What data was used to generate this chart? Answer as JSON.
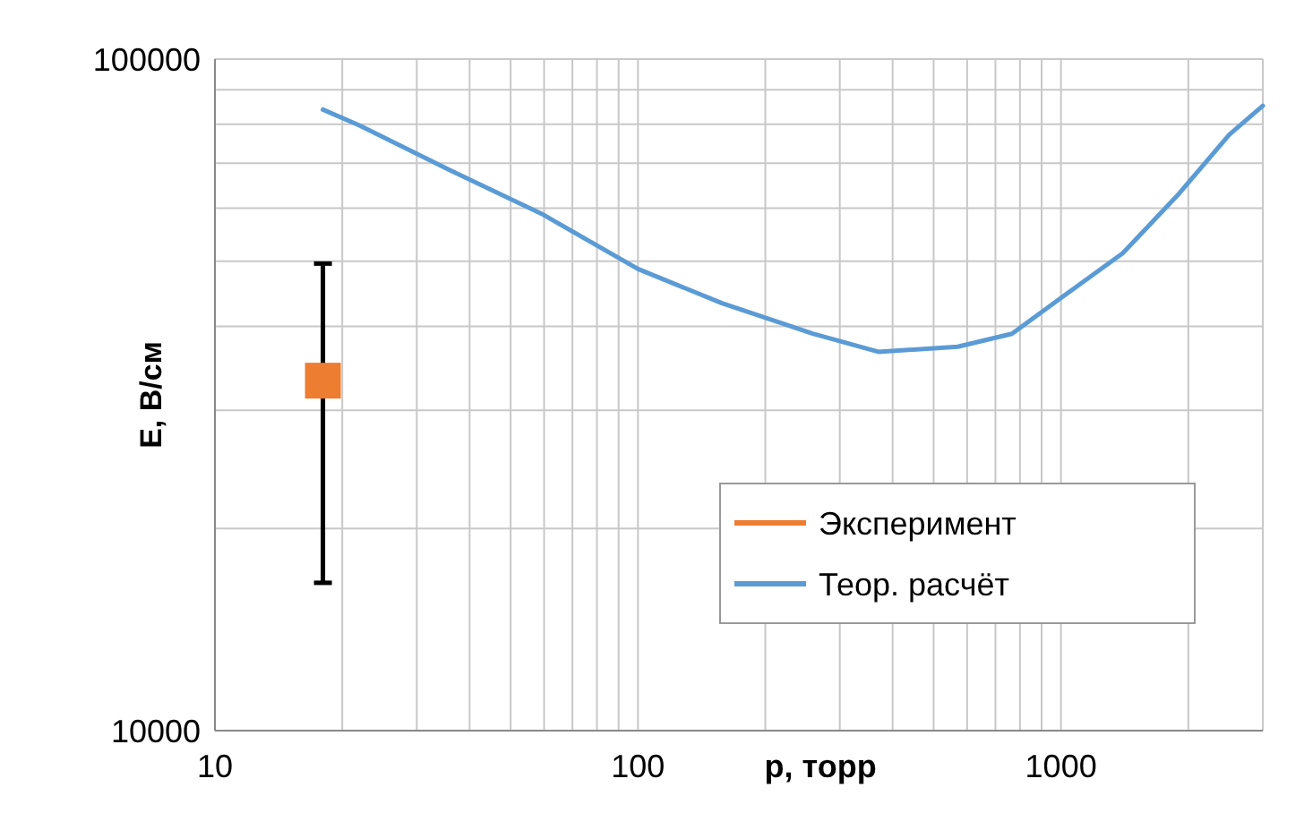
{
  "chart_data": {
    "type": "line",
    "xlabel": "p, торр",
    "ylabel": "E, В/см",
    "log": "xy",
    "grid": true,
    "legend": "bottom right",
    "xlim": [
      10,
      3000
    ],
    "ylim": [
      10000,
      100000
    ],
    "xticks": [
      10,
      {
        "value": 20,
        "label": null
      },
      {
        "value": 30,
        "label": null
      },
      {
        "value": 40,
        "label": null
      },
      {
        "value": 50,
        "label": null
      },
      {
        "value": 60,
        "label": null
      },
      {
        "value": 70,
        "label": null
      },
      {
        "value": 80,
        "label": null
      },
      {
        "value": 90,
        "label": null
      },
      100,
      {
        "value": 200,
        "label": null
      },
      {
        "value": 300,
        "label": null
      },
      {
        "value": 400,
        "label": null
      },
      {
        "value": 500,
        "label": null
      },
      {
        "value": 600,
        "label": null
      },
      {
        "value": 700,
        "label": null
      },
      {
        "value": 800,
        "label": null
      },
      {
        "value": 900,
        "label": null
      },
      1000,
      {
        "value": 2000,
        "label": null
      },
      {
        "value": 3000,
        "label": null
      }
    ],
    "yticks": [
      10000,
      {
        "value": 20000,
        "label": null
      },
      {
        "value": 30000,
        "label": null
      },
      {
        "value": 40000,
        "label": null
      },
      {
        "value": 50000,
        "label": null
      },
      {
        "value": 60000,
        "label": null
      },
      {
        "value": 70000,
        "label": null
      },
      {
        "value": 80000,
        "label": null
      },
      {
        "value": 90000,
        "label": null
      },
      100000
    ],
    "series": [
      {
        "name": "Эксперимент",
        "type": "scatter",
        "marker": "square",
        "color": "#ed7d31",
        "x": [
          18
        ],
        "values": [
          33200
        ],
        "errors": [
          [
            16600,
            49600
          ]
        ]
      },
      {
        "name": "Теор. расчёт",
        "marker": "none",
        "line_style": "solid",
        "color": "#5b9bd5",
        "x": [
          18,
          22,
          36,
          59,
          100,
          158,
          259,
          370,
          570,
          766,
          1000,
          1400,
          1900,
          2500,
          3000
        ],
        "values": [
          84100,
          79600,
          68300,
          58900,
          48700,
          43300,
          39000,
          36650,
          37300,
          39000,
          44100,
          51400,
          63000,
          77200,
          85200
        ]
      }
    ]
  }
}
